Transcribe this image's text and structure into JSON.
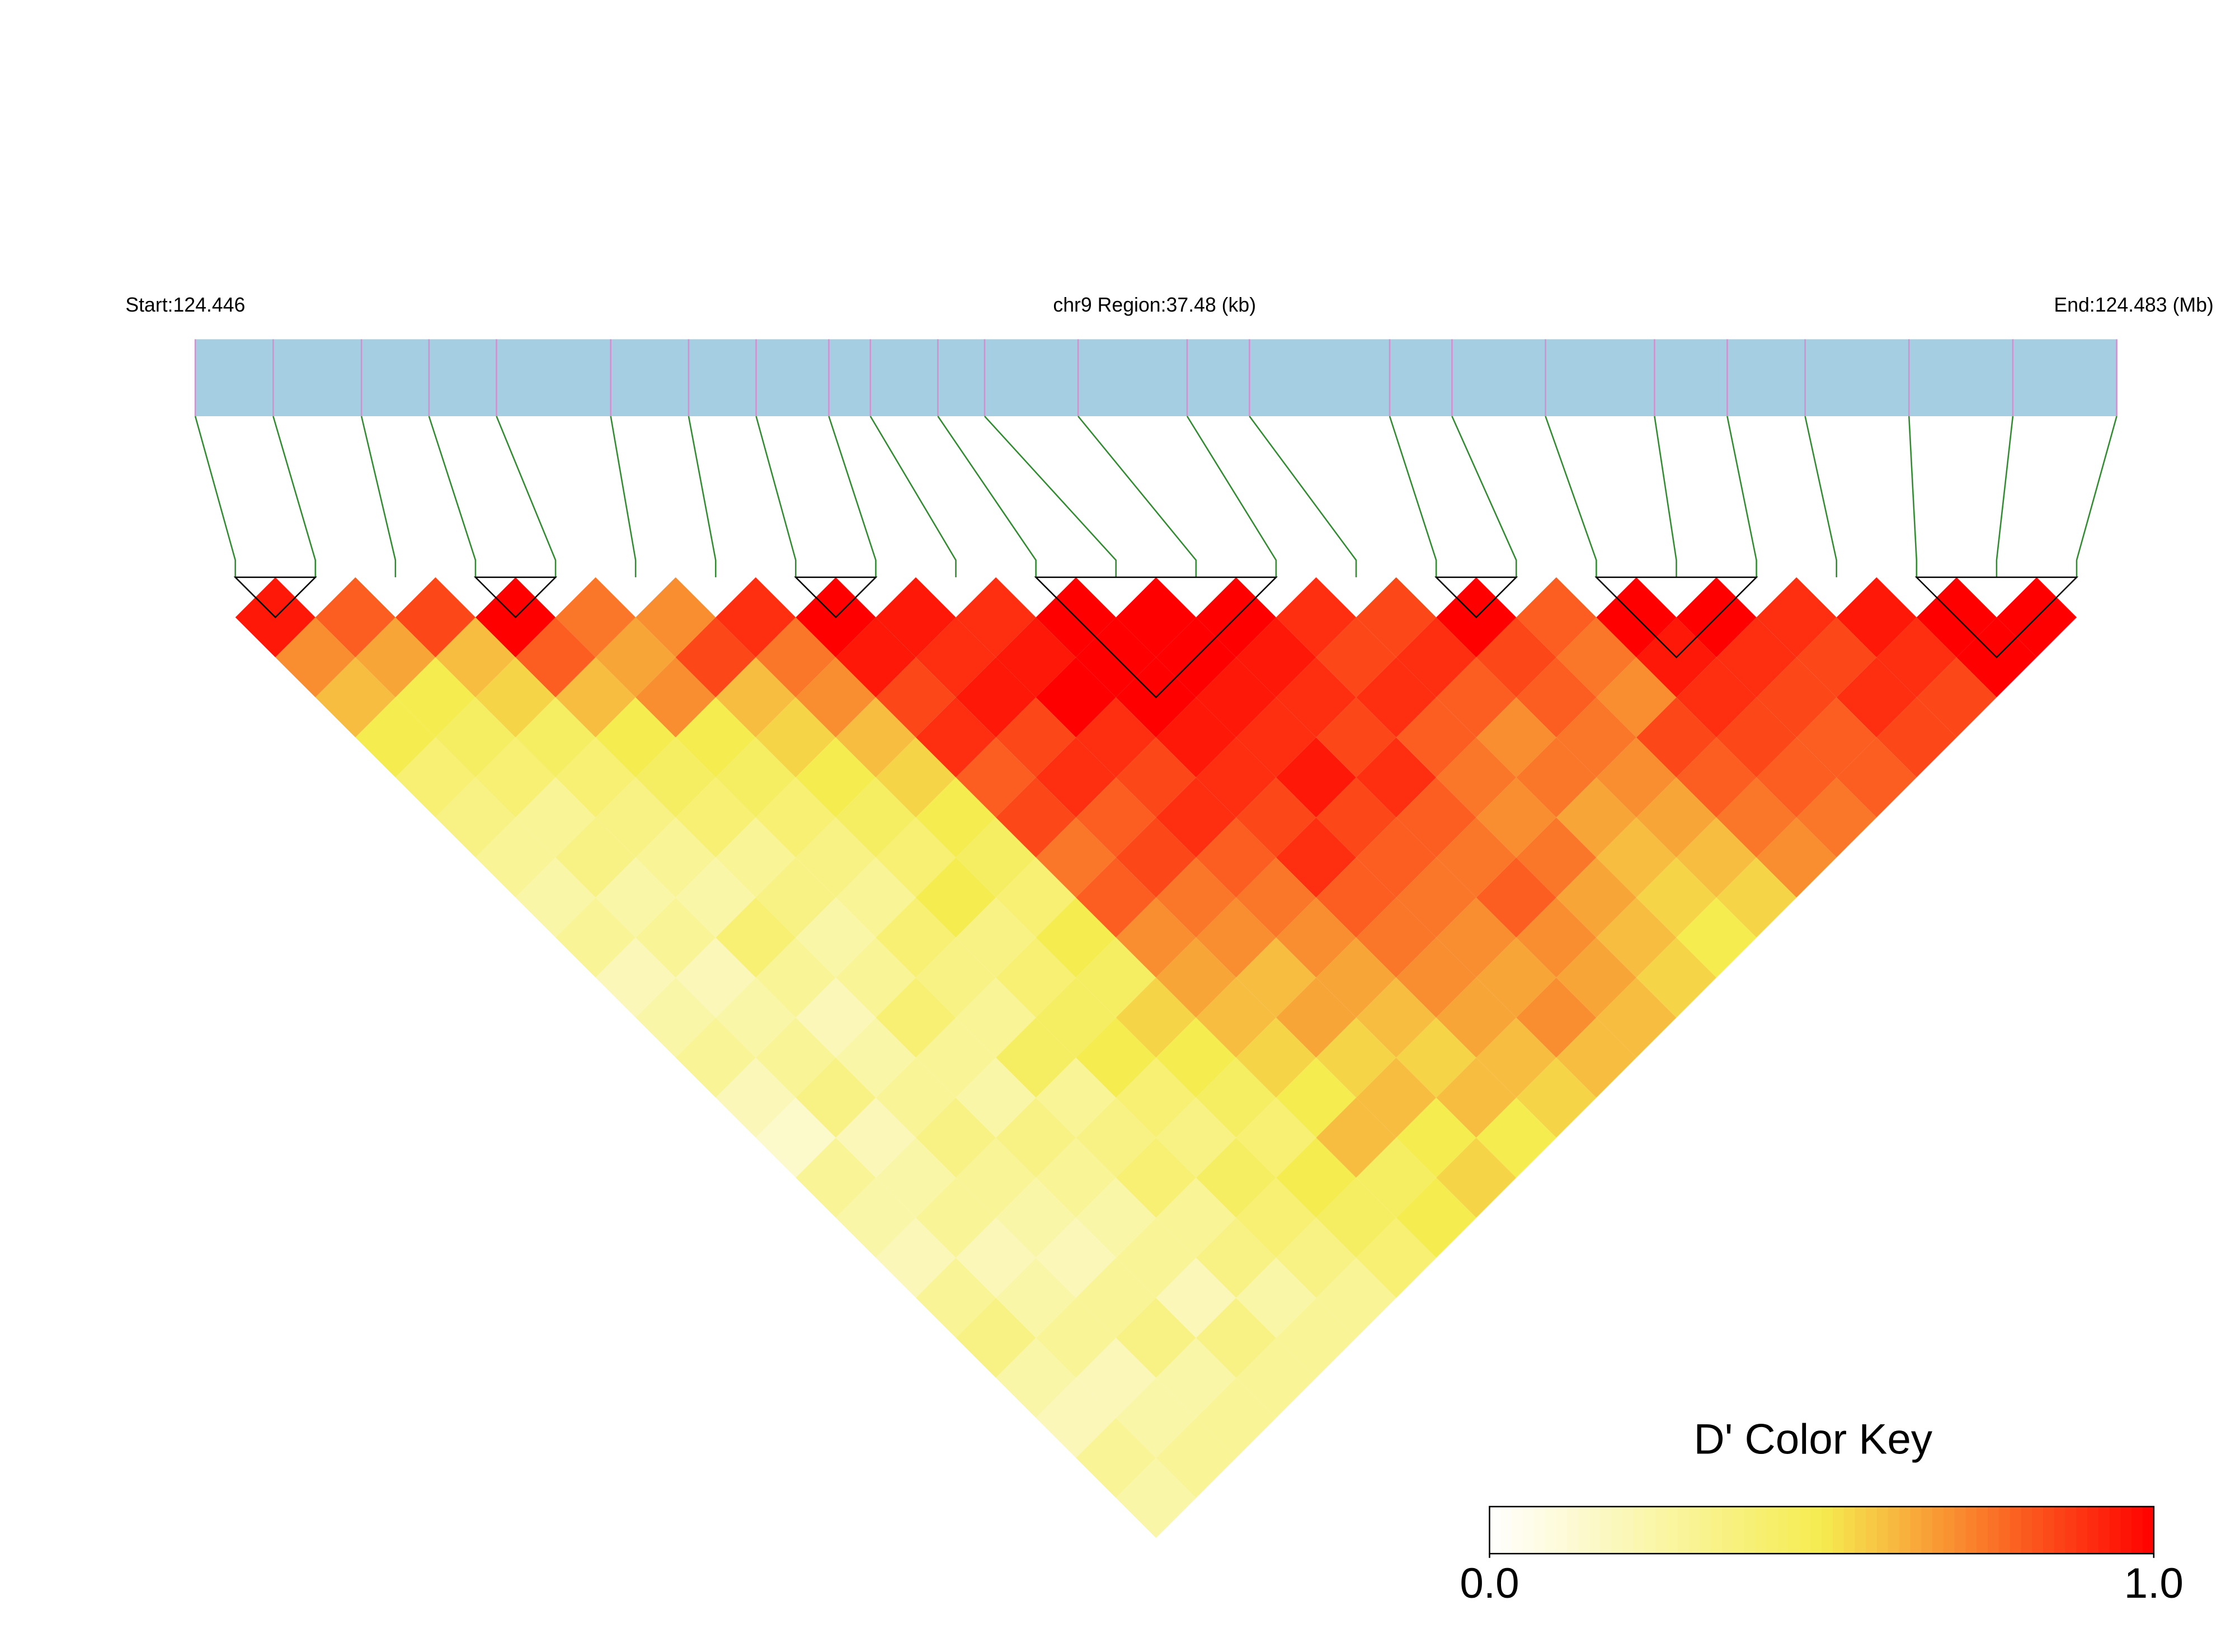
{
  "chart_data": {
    "type": "ld-heatmap",
    "start_label": "Start:124.446",
    "region_label": "chr9 Region:37.48 (kb)",
    "end_label": "End:124.483 (Mb)",
    "xlim": [
      124.446,
      124.483
    ],
    "snp_positions": [
      124.446,
      124.4475,
      124.4492,
      124.4505,
      124.4518,
      124.454,
      124.4555,
      124.4568,
      124.4582,
      124.459,
      124.4603,
      124.4612,
      124.463,
      124.4651,
      124.4663,
      124.469,
      124.4702,
      124.472,
      124.4741,
      124.4755,
      124.477,
      124.479,
      124.481,
      124.483
    ],
    "bar_color": "#a6cee3",
    "snp_line_color": "#d48fcf",
    "connector_color": "#2e8b2e",
    "block_color": "#000000",
    "blocks": [
      [
        0,
        1
      ],
      [
        3,
        4
      ],
      [
        7,
        8
      ],
      [
        10,
        13
      ],
      [
        15,
        16
      ],
      [
        17,
        19
      ],
      [
        21,
        23
      ]
    ],
    "matrix": [
      [
        0.95,
        0.7,
        0.6,
        0.5,
        0.4,
        0.35,
        0.3,
        0.25,
        0.3,
        0.2,
        0.25,
        0.3,
        0.2,
        0.15,
        0.3,
        0.25,
        0.2,
        0.3,
        0.35,
        0.25,
        0.2,
        0.3,
        0.25
      ],
      [
        0.8,
        0.65,
        0.5,
        0.45,
        0.4,
        0.3,
        0.35,
        0.25,
        0.3,
        0.2,
        0.25,
        0.3,
        0.35,
        0.2,
        0.25,
        0.3,
        0.2,
        0.25,
        0.3,
        0.2,
        0.25,
        0.3
      ],
      [
        0.85,
        0.6,
        0.55,
        0.45,
        0.4,
        0.35,
        0.3,
        0.25,
        0.4,
        0.3,
        0.2,
        0.25,
        0.3,
        0.35,
        0.3,
        0.25,
        0.2,
        0.3,
        0.35,
        0.25,
        0.3
      ],
      [
        1,
        0.8,
        0.6,
        0.5,
        0.45,
        0.4,
        0.3,
        0.35,
        0.25,
        0.3,
        0.4,
        0.3,
        0.25,
        0.35,
        0.3,
        0.25,
        0.3,
        0.2,
        0.35,
        0.3
      ],
      [
        0.75,
        0.65,
        0.7,
        0.5,
        0.45,
        0.4,
        0.35,
        0.3,
        0.4,
        0.35,
        0.3,
        0.45,
        0.3,
        0.35,
        0.4,
        0.3,
        0.35,
        0.25,
        0.3
      ],
      [
        0.7,
        0.85,
        0.6,
        0.55,
        0.5,
        0.45,
        0.4,
        0.5,
        0.35,
        0.4,
        0.45,
        0.5,
        0.4,
        0.35,
        0.45,
        0.4,
        0.35,
        0.3
      ],
      [
        0.9,
        0.75,
        0.7,
        0.6,
        0.55,
        0.5,
        0.45,
        0.4,
        0.5,
        0.45,
        0.55,
        0.5,
        0.45,
        0.4,
        0.5,
        0.45,
        0.4
      ],
      [
        1,
        0.95,
        0.85,
        0.9,
        0.8,
        0.85,
        0.75,
        0.8,
        0.7,
        0.65,
        0.6,
        0.55,
        0.5,
        0.6,
        0.45,
        0.5
      ],
      [
        0.95,
        0.9,
        0.95,
        0.85,
        0.9,
        0.8,
        0.85,
        0.75,
        0.7,
        0.6,
        0.65,
        0.55,
        0.6,
        0.5,
        0.55
      ],
      [
        0.9,
        0.95,
        1,
        0.9,
        0.85,
        0.9,
        0.8,
        0.75,
        0.7,
        0.65,
        0.6,
        0.55,
        0.6,
        0.5
      ],
      [
        1,
        1,
        1,
        0.95,
        0.9,
        0.85,
        0.9,
        0.8,
        0.75,
        0.7,
        0.65,
        0.6,
        0.55
      ],
      [
        1,
        1,
        0.95,
        0.9,
        0.95,
        0.85,
        0.8,
        0.75,
        0.7,
        0.65,
        0.7,
        0.6
      ],
      [
        1,
        0.95,
        0.9,
        0.85,
        0.9,
        0.8,
        0.75,
        0.8,
        0.7,
        0.65,
        0.6
      ],
      [
        0.9,
        0.85,
        0.9,
        0.8,
        0.75,
        0.7,
        0.75,
        0.65,
        0.6,
        0.55
      ],
      [
        0.85,
        0.9,
        0.8,
        0.7,
        0.75,
        0.65,
        0.6,
        0.55,
        0.5
      ],
      [
        1,
        0.85,
        0.8,
        0.75,
        0.7,
        0.65,
        0.6,
        0.55
      ],
      [
        0.8,
        0.75,
        0.7,
        0.85,
        0.8,
        0.75,
        0.7
      ],
      [
        1,
        0.95,
        0.9,
        0.85,
        0.8,
        0.75
      ],
      [
        1,
        0.9,
        0.85,
        0.8,
        0.8
      ],
      [
        0.9,
        0.85,
        0.9,
        0.85
      ],
      [
        0.95,
        0.9,
        0.85
      ],
      [
        1,
        1
      ],
      [
        1
      ]
    ],
    "color_key": {
      "title": "D' Color Key",
      "colors": [
        "#ffffff",
        "#f5ec50",
        "#ff0000"
      ],
      "ticks": [
        {
          "value": 0,
          "label": "0.0"
        },
        {
          "value": 1,
          "label": "1.0"
        }
      ]
    }
  }
}
